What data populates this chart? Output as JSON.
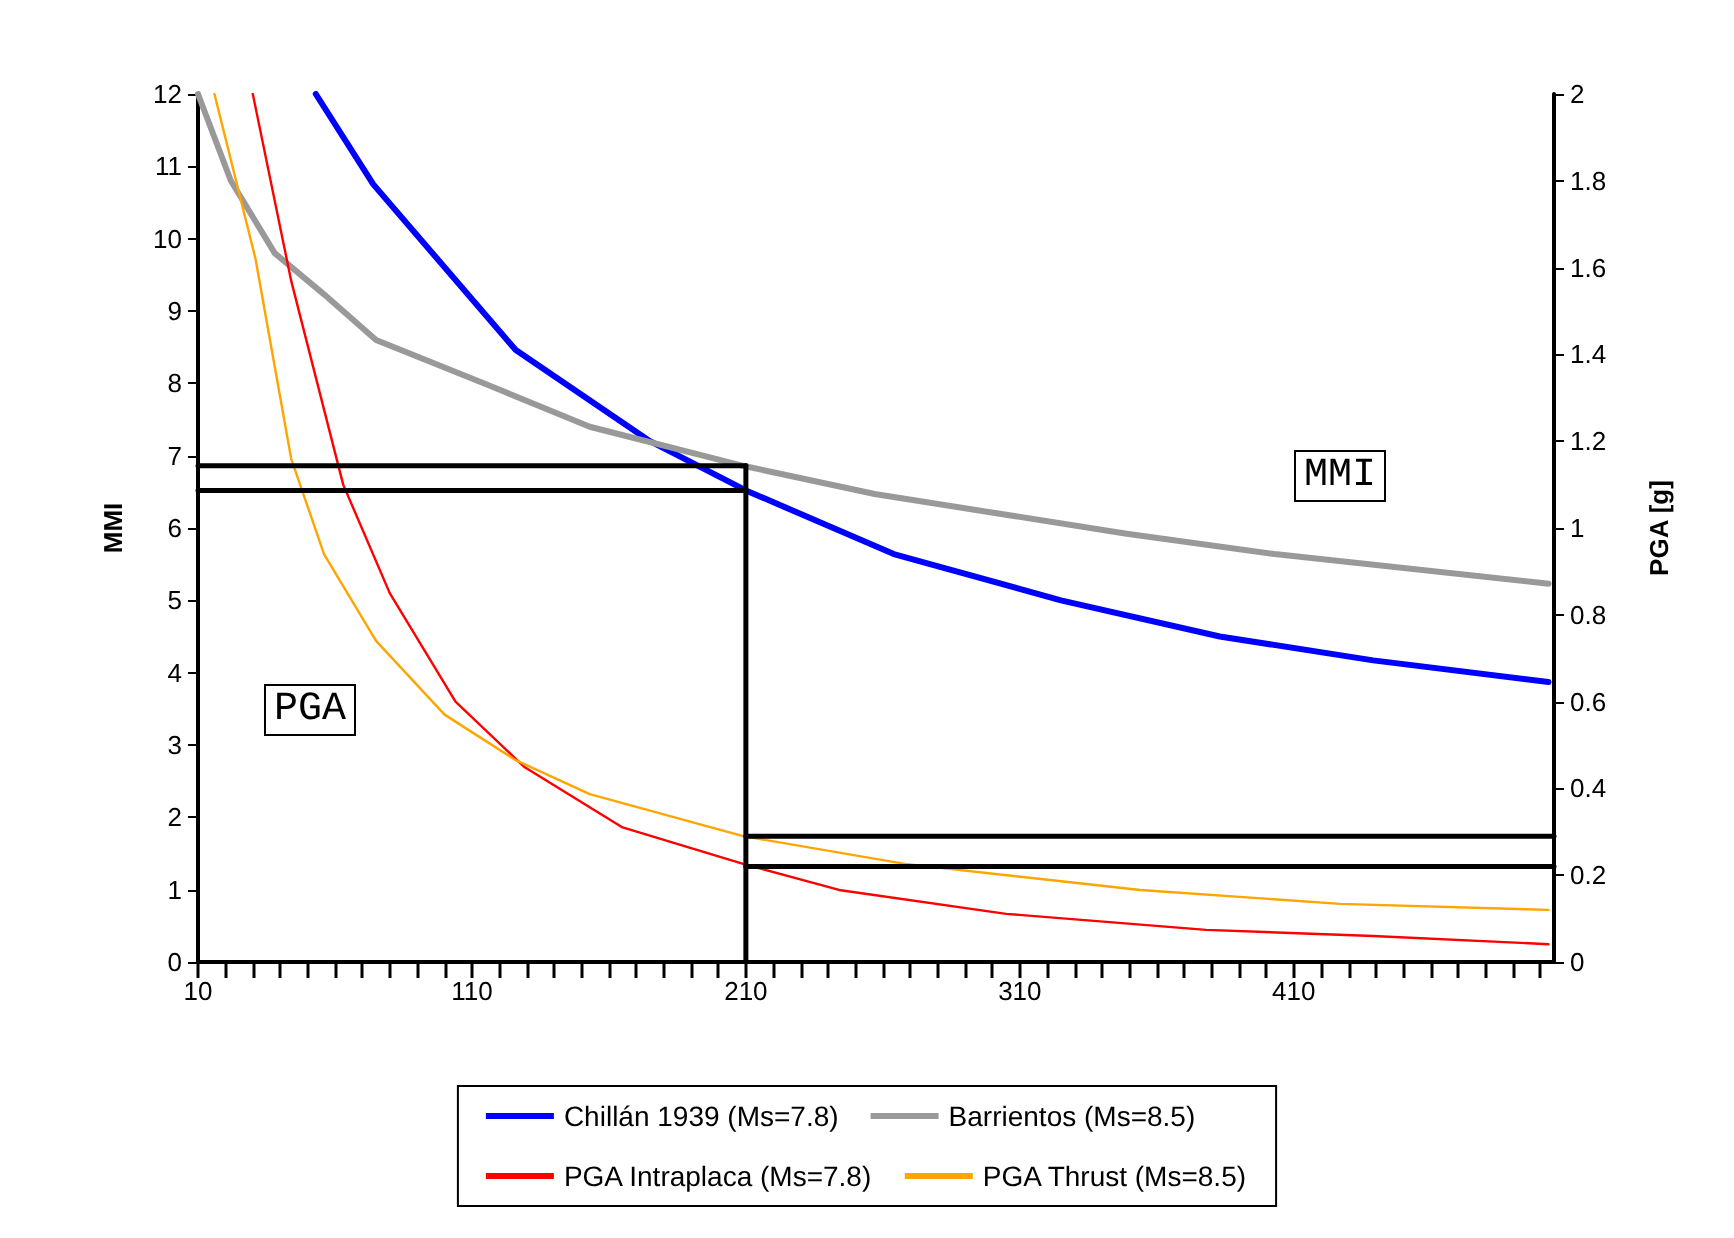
{
  "chart_data": {
    "type": "line",
    "xlabel": null,
    "ylabel": "MMI",
    "y2label": "PGA [g]",
    "xlim": [
      10,
      505
    ],
    "xticks": [
      10,
      {
        "value": 20,
        "label": null
      },
      {
        "value": 30,
        "label": null
      },
      {
        "value": 40,
        "label": null
      },
      {
        "value": 50,
        "label": null
      },
      {
        "value": 60,
        "label": null
      },
      {
        "value": 70,
        "label": null
      },
      {
        "value": 80,
        "label": null
      },
      {
        "value": 90,
        "label": null
      },
      {
        "value": 100,
        "label": null
      },
      110,
      {
        "value": 120,
        "label": null
      },
      {
        "value": 130,
        "label": null
      },
      {
        "value": 140,
        "label": null
      },
      {
        "value": 150,
        "label": null
      },
      {
        "value": 160,
        "label": null
      },
      {
        "value": 170,
        "label": null
      },
      {
        "value": 180,
        "label": null
      },
      {
        "value": 190,
        "label": null
      },
      {
        "value": 200,
        "label": null
      },
      210,
      {
        "value": 220,
        "label": null
      },
      {
        "value": 230,
        "label": null
      },
      {
        "value": 240,
        "label": null
      },
      {
        "value": 250,
        "label": null
      },
      {
        "value": 260,
        "label": null
      },
      {
        "value": 270,
        "label": null
      },
      {
        "value": 280,
        "label": null
      },
      {
        "value": 290,
        "label": null
      },
      {
        "value": 300,
        "label": null
      },
      310,
      {
        "value": 320,
        "label": null
      },
      {
        "value": 330,
        "label": null
      },
      {
        "value": 340,
        "label": null
      },
      {
        "value": 350,
        "label": null
      },
      {
        "value": 360,
        "label": null
      },
      {
        "value": 370,
        "label": null
      },
      {
        "value": 380,
        "label": null
      },
      {
        "value": 390,
        "label": null
      },
      {
        "value": 400,
        "label": null
      },
      410,
      {
        "value": 420,
        "label": null
      },
      {
        "value": 430,
        "label": null
      },
      {
        "value": 440,
        "label": null
      },
      {
        "value": 450,
        "label": null
      },
      {
        "value": 460,
        "label": null
      },
      {
        "value": 470,
        "label": null
      },
      {
        "value": 480,
        "label": null
      },
      {
        "value": 490,
        "label": null
      },
      {
        "value": 500,
        "label": null
      }
    ],
    "ylim": [
      0,
      12
    ],
    "yticks": [
      0,
      1,
      2,
      3,
      4,
      5,
      6,
      7,
      8,
      9,
      10,
      11,
      12
    ],
    "y2lim": [
      0,
      2
    ],
    "y2ticks": [
      0,
      0.2,
      0.4,
      0.6,
      0.8,
      1,
      1.2,
      1.4,
      1.6,
      1.8,
      2
    ],
    "grid": false,
    "legend": "bottom",
    "marker": "none",
    "line_style": "solid",
    "annotations": [
      "MMI",
      "PGA"
    ],
    "series": [
      {
        "name": "Chillán 1939 (Ms=7.8)",
        "color": "#0000ff",
        "x": [
          53,
          74,
          126,
          175,
          210,
          264,
          325,
          383,
          439,
          503
        ],
        "values": [
          12,
          10.75,
          8.46,
          7.2,
          6.52,
          5.64,
          5.0,
          4.5,
          4.17,
          3.87
        ]
      },
      {
        "name": "Barrientos (Ms=8.5)",
        "color": "#999999",
        "x": [
          10,
          22,
          38,
          56,
          75,
          117,
          153,
          209,
          257,
          349,
          403,
          503
        ],
        "values": [
          12,
          10.8,
          9.8,
          9.23,
          8.6,
          7.96,
          7.4,
          6.86,
          6.47,
          5.92,
          5.64,
          5.23
        ]
      },
      {
        "name": "PGA Intraplaca (Ms=7.8)",
        "color": "#ff0000",
        "axis": "y2",
        "x": [
          30,
          44,
          63,
          80,
          104,
          129,
          165,
          209,
          244,
          305,
          378,
          439,
          503
        ],
        "values": [
          2,
          1.57,
          1.1,
          0.85,
          0.6,
          0.45,
          0.31,
          0.226,
          0.166,
          0.111,
          0.074,
          0.06,
          0.041
        ]
      },
      {
        "name": "PGA Thrust (Ms=8.5)",
        "color": "#ffa500",
        "axis": "y2",
        "x": [
          16,
          31,
          44,
          56,
          75,
          100,
          126,
          153,
          209,
          268,
          354,
          427,
          503
        ],
        "values": [
          2,
          1.62,
          1.16,
          0.94,
          0.74,
          0.57,
          0.465,
          0.387,
          0.29,
          0.226,
          0.166,
          0.134,
          0.12
        ]
      },
      {
        "color": "#000000",
        "x": [
          10,
          210
        ],
        "values": [
          6.86,
          6.86
        ]
      },
      {
        "color": "#000000",
        "x": [
          10,
          210
        ],
        "values": [
          6.52,
          6.52
        ]
      },
      {
        "color": "#000000",
        "x": [
          210,
          210
        ],
        "values": [
          0,
          6.86
        ]
      },
      {
        "color": "#000000",
        "axis": "y2",
        "x": [
          210,
          505
        ],
        "values": [
          0.29,
          0.29
        ]
      },
      {
        "color": "#000000",
        "axis": "y2",
        "x": [
          210,
          505
        ],
        "values": [
          0.22,
          0.22
        ]
      }
    ]
  }
}
